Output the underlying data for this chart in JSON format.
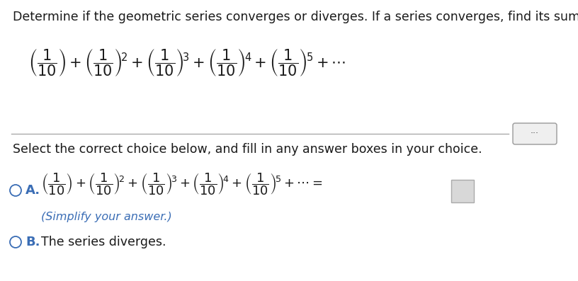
{
  "bg_color": "#ffffff",
  "title_text": "Determine if the geometric series converges or diverges. If a series converges, find its sum.",
  "title_fontsize": 12.5,
  "title_color": "#1a1a1a",
  "series_formula_top": "$\\left(\\dfrac{1}{10}\\right) + \\left(\\dfrac{1}{10}\\right)^{\\!2} + \\left(\\dfrac{1}{10}\\right)^{\\!3} + \\left(\\dfrac{1}{10}\\right)^{\\!4} + \\left(\\dfrac{1}{10}\\right)^{\\!5} + \\cdots$",
  "select_text": "Select the correct choice below, and fill in any answer boxes in your choice.",
  "select_fontsize": 12.5,
  "choice_A_formula": "$\\left(\\dfrac{1}{10}\\right) + \\left(\\dfrac{1}{10}\\right)^{\\!2} + \\left(\\dfrac{1}{10}\\right)^{\\!3} + \\left(\\dfrac{1}{10}\\right)^{\\!4} + \\left(\\dfrac{1}{10}\\right)^{\\!5} + \\cdots =$",
  "choice_A_simplify": "(Simplify your answer.)",
  "choice_B_text": "The series diverges.",
  "label_color": "#3a6db5",
  "formula_color": "#1a1a1a",
  "circle_color": "#3a6db5",
  "font_size_formula_top": 15,
  "font_size_formula_choice": 13,
  "font_size_choice_text": 12.5
}
